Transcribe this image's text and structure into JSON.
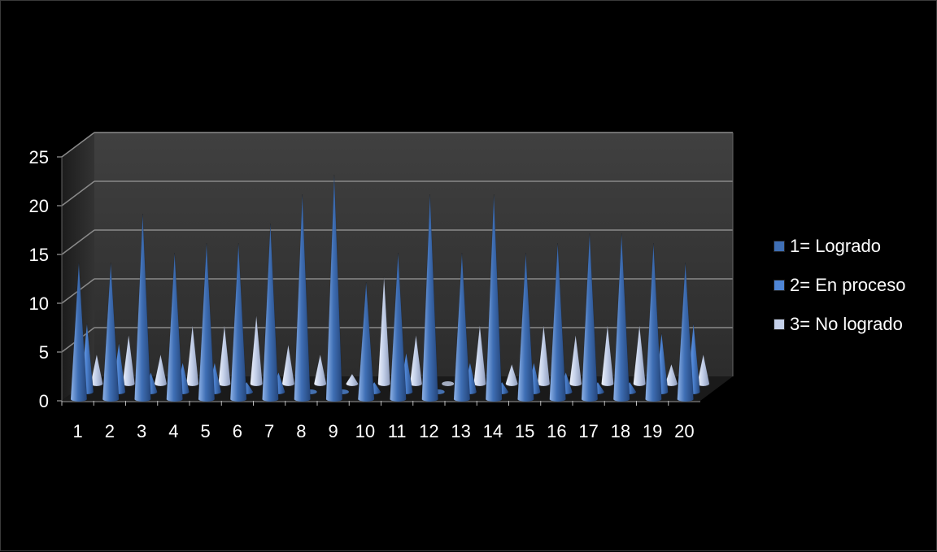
{
  "chart_data": {
    "type": "bar",
    "variant": "3d-cone",
    "title": "",
    "xlabel": "",
    "ylabel": "",
    "categories": [
      "1",
      "2",
      "3",
      "4",
      "5",
      "6",
      "7",
      "8",
      "9",
      "10",
      "11",
      "12",
      "13",
      "14",
      "15",
      "16",
      "17",
      "18",
      "19",
      "20"
    ],
    "ylim": [
      0,
      25
    ],
    "yticks": [
      "0",
      "5",
      "10",
      "15",
      "20",
      "25"
    ],
    "grid": true,
    "legend_position": "right",
    "series": [
      {
        "name": "1= Logrado",
        "color": "#3f6fb5",
        "values": [
          14,
          14,
          19,
          15,
          16,
          16,
          18,
          21,
          23,
          12,
          15,
          21,
          15,
          21,
          15,
          16,
          17,
          17,
          16,
          14
        ]
      },
      {
        "name": "2= En proceso",
        "color": "#4f86d6",
        "values": [
          7,
          5,
          2,
          3,
          3,
          1,
          2,
          0,
          0,
          1,
          4,
          0,
          3,
          1,
          3,
          2,
          1,
          1,
          6,
          7
        ]
      },
      {
        "name": "3= No logrado",
        "color": "#c5d1ea",
        "values": [
          3,
          5,
          3,
          6,
          6,
          7,
          4,
          3,
          1,
          11,
          5,
          0,
          6,
          2,
          6,
          5,
          6,
          6,
          2,
          3
        ]
      }
    ]
  }
}
